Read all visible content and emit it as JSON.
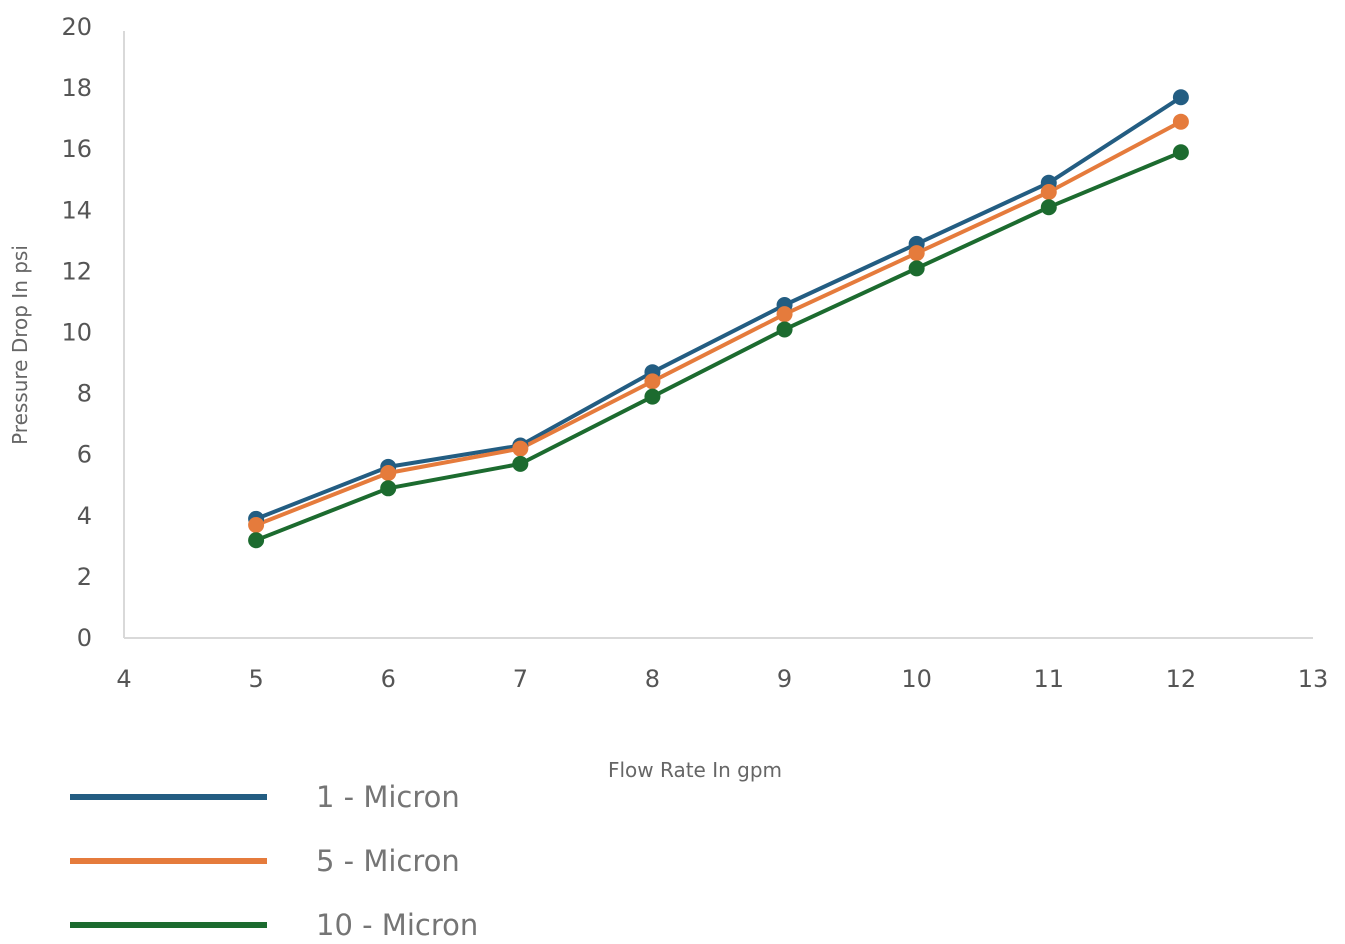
{
  "chart_data": {
    "type": "line",
    "title": "",
    "xlabel": "Flow Rate In gpm",
    "ylabel": "Pressure Drop In psi",
    "xlim": [
      4,
      13
    ],
    "ylim": [
      0,
      20
    ],
    "x_ticks": [
      4,
      5,
      6,
      7,
      8,
      9,
      10,
      11,
      12,
      13
    ],
    "y_ticks": [
      0,
      2,
      4,
      6,
      8,
      10,
      12,
      14,
      16,
      18,
      20
    ],
    "grid": false,
    "legend": "bottom-left",
    "x": [
      5,
      6,
      7,
      8,
      9,
      10,
      11,
      12
    ],
    "series": [
      {
        "name": "1 - Micron",
        "color": "#235d82",
        "values": [
          3.9,
          5.6,
          6.3,
          8.7,
          10.9,
          12.9,
          14.9,
          17.7
        ]
      },
      {
        "name": "5 - Micron",
        "color": "#e57b3c",
        "values": [
          3.7,
          5.4,
          6.2,
          8.4,
          10.6,
          12.6,
          14.6,
          16.9
        ]
      },
      {
        "name": "10 - Micron",
        "color": "#1c6b2f",
        "values": [
          3.2,
          4.9,
          5.7,
          7.9,
          10.1,
          12.1,
          14.1,
          15.9
        ]
      }
    ]
  }
}
